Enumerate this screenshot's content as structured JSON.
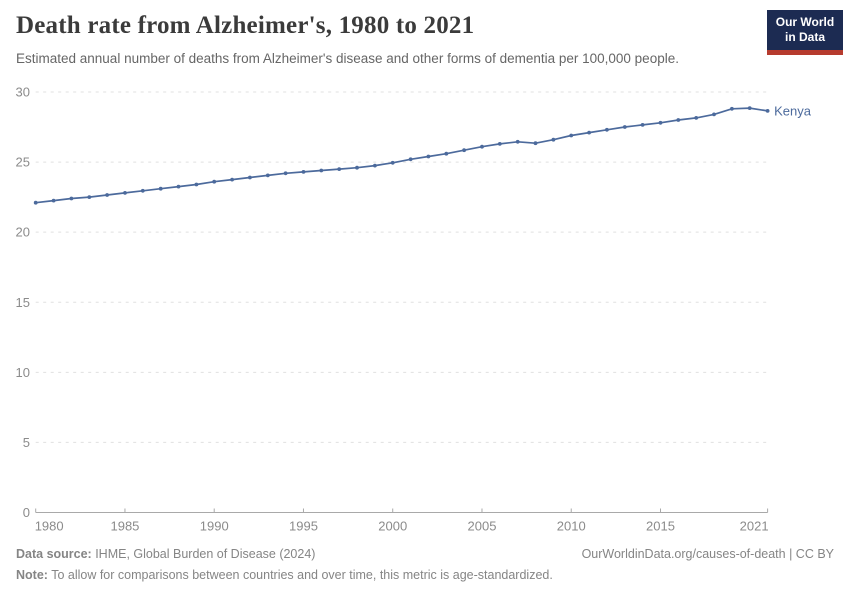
{
  "header": {
    "title": "Death rate from Alzheimer's, 1980 to 2021",
    "subtitle": "Estimated annual number of deaths from Alzheimer's disease and other forms of dementia per 100,000 people.",
    "logo": {
      "line1": "Our World",
      "line2": "in Data",
      "bg_color": "#1c2b52",
      "accent_color": "#b63b2e"
    }
  },
  "chart_data": {
    "type": "line",
    "title": "Death rate from Alzheimer's, 1980 to 2021",
    "subtitle": "Estimated annual number of deaths from Alzheimer's disease and other forms of dementia per 100,000 people.",
    "xlabel": "",
    "ylabel": "",
    "ylim": [
      0,
      30
    ],
    "yticks": [
      0,
      5,
      10,
      15,
      20,
      25,
      30
    ],
    "xticks": [
      1980,
      1985,
      1990,
      1995,
      2000,
      2005,
      2010,
      2015,
      2021
    ],
    "grid": "horizontal-dashed",
    "legend_position": "end-of-line-label",
    "x": [
      1980,
      1981,
      1982,
      1983,
      1984,
      1985,
      1986,
      1987,
      1988,
      1989,
      1990,
      1991,
      1992,
      1993,
      1994,
      1995,
      1996,
      1997,
      1998,
      1999,
      2000,
      2001,
      2002,
      2003,
      2004,
      2005,
      2006,
      2007,
      2008,
      2009,
      2010,
      2011,
      2012,
      2013,
      2014,
      2015,
      2016,
      2017,
      2018,
      2019,
      2020,
      2021
    ],
    "series": [
      {
        "name": "Kenya",
        "color": "#4c6a9c",
        "values": [
          22.1,
          22.25,
          22.4,
          22.5,
          22.65,
          22.8,
          22.95,
          23.1,
          23.25,
          23.4,
          23.6,
          23.75,
          23.9,
          24.05,
          24.2,
          24.3,
          24.4,
          24.5,
          24.6,
          24.75,
          24.95,
          25.2,
          25.4,
          25.6,
          25.85,
          26.1,
          26.3,
          26.45,
          26.35,
          26.6,
          26.9,
          27.1,
          27.3,
          27.5,
          27.65,
          27.8,
          28.0,
          28.15,
          28.4,
          28.8,
          28.85,
          28.65
        ]
      }
    ]
  },
  "footer": {
    "datasource_label": "Data source:",
    "datasource_value": " IHME, Global Burden of Disease (2024)",
    "link": "OurWorldinData.org/causes-of-death | CC BY",
    "note_label": "Note:",
    "note_value": " To allow for comparisons between countries and over time, this metric is age-standardized."
  },
  "colors": {
    "line": "#4c6a9c",
    "grid": "#e0e0e0",
    "axis": "#a9a9a9",
    "axis_text": "#8b8b8b",
    "title_text": "#3b3b3b",
    "subtitle_text": "#666666",
    "footer_text": "#858585"
  }
}
